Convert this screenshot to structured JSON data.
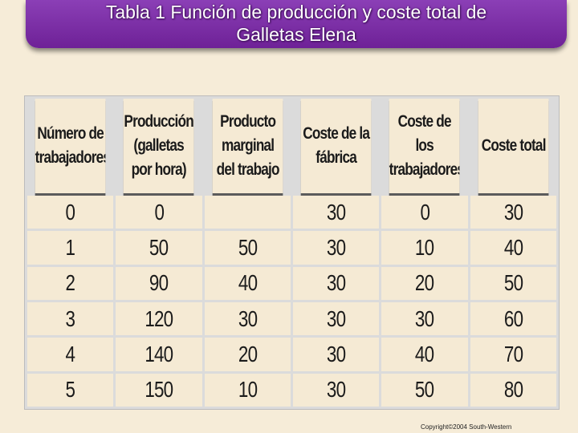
{
  "title": {
    "line1": "Tabla 1 Función de producción y coste total de",
    "line2": "Galletas Elena"
  },
  "table": {
    "headers": [
      "Número de trabajadores",
      "Producción (galletas por hora)",
      "Producto marginal del trabajo",
      "Coste de la fábrica",
      "Coste de los trabajadores",
      "Coste total"
    ],
    "rows": [
      [
        "0",
        "0",
        "",
        "30",
        "0",
        "30"
      ],
      [
        "1",
        "50",
        "50",
        "30",
        "10",
        "40"
      ],
      [
        "2",
        "90",
        "40",
        "30",
        "20",
        "50"
      ],
      [
        "3",
        "120",
        "30",
        "30",
        "30",
        "60"
      ],
      [
        "4",
        "140",
        "20",
        "30",
        "40",
        "70"
      ],
      [
        "5",
        "150",
        "10",
        "30",
        "50",
        "80"
      ]
    ]
  },
  "copyright": "Copyright©2004 South-Western",
  "colors": {
    "title_bar": "#7a2aa6",
    "page_background": "#f6ecd8",
    "cell_background": "#f5ead4",
    "grid_lines": "#dbdbdb"
  }
}
